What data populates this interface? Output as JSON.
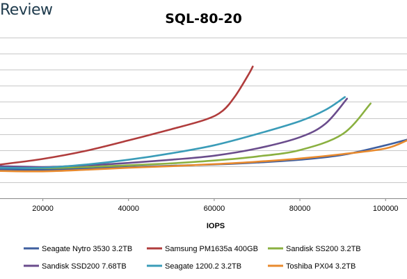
{
  "brand": "Review",
  "chart_data": {
    "type": "line",
    "title": "SQL-80-20",
    "xlabel": "IOPS",
    "ylabel": "",
    "xlim": [
      10000,
      105000
    ],
    "xticks": [
      20000,
      40000,
      60000,
      80000,
      100000
    ],
    "grid": "horizontal",
    "legend": "bottom",
    "series": [
      {
        "name": "Seagate Nytro 3530 3.2TB",
        "color": "#3f5f9f",
        "points": [
          [
            10000,
            3.6
          ],
          [
            20000,
            3.55
          ],
          [
            30000,
            3.7
          ],
          [
            40000,
            3.9
          ],
          [
            50000,
            4.05
          ],
          [
            60000,
            4.2
          ],
          [
            70000,
            4.45
          ],
          [
            80000,
            4.8
          ],
          [
            90000,
            5.4
          ],
          [
            100000,
            6.6
          ],
          [
            105000,
            7.3
          ]
        ]
      },
      {
        "name": "Samsung PM1635a 400GB",
        "color": "#b03c3c",
        "points": [
          [
            10000,
            4.2
          ],
          [
            20000,
            4.9
          ],
          [
            30000,
            5.9
          ],
          [
            40000,
            7.2
          ],
          [
            50000,
            8.6
          ],
          [
            58000,
            9.8
          ],
          [
            62000,
            10.9
          ],
          [
            65000,
            12.8
          ],
          [
            68000,
            15.4
          ],
          [
            69000,
            16.4
          ]
        ]
      },
      {
        "name": "Sandisk SS200 3.2TB",
        "color": "#8ab040",
        "points": [
          [
            10000,
            3.9
          ],
          [
            20000,
            3.75
          ],
          [
            30000,
            3.9
          ],
          [
            40000,
            4.1
          ],
          [
            50000,
            4.35
          ],
          [
            60000,
            4.7
          ],
          [
            70000,
            5.2
          ],
          [
            80000,
            6.0
          ],
          [
            90000,
            8.0
          ],
          [
            96500,
            11.8
          ]
        ]
      },
      {
        "name": "Sandisk SSD200 7.68TB",
        "color": "#6a4c8c",
        "points": [
          [
            10000,
            4.0
          ],
          [
            20000,
            3.9
          ],
          [
            30000,
            4.1
          ],
          [
            40000,
            4.4
          ],
          [
            50000,
            4.8
          ],
          [
            60000,
            5.3
          ],
          [
            70000,
            6.2
          ],
          [
            80000,
            7.6
          ],
          [
            86000,
            9.3
          ],
          [
            91000,
            12.4
          ]
        ]
      },
      {
        "name": "Seagate 1200.2 3.2TB",
        "color": "#3a9cb8",
        "points": [
          [
            10000,
            3.8
          ],
          [
            20000,
            3.8
          ],
          [
            30000,
            4.2
          ],
          [
            40000,
            4.8
          ],
          [
            50000,
            5.6
          ],
          [
            60000,
            6.6
          ],
          [
            70000,
            8.0
          ],
          [
            80000,
            9.6
          ],
          [
            86000,
            11.0
          ],
          [
            90500,
            12.6
          ]
        ]
      },
      {
        "name": "Toshiba PX04 3.2TB",
        "color": "#e88a2e",
        "points": [
          [
            10000,
            3.4
          ],
          [
            20000,
            3.35
          ],
          [
            30000,
            3.55
          ],
          [
            40000,
            3.8
          ],
          [
            50000,
            4.0
          ],
          [
            60000,
            4.25
          ],
          [
            70000,
            4.55
          ],
          [
            80000,
            4.95
          ],
          [
            90000,
            5.5
          ],
          [
            100000,
            6.2
          ],
          [
            105000,
            7.2
          ]
        ]
      }
    ]
  }
}
